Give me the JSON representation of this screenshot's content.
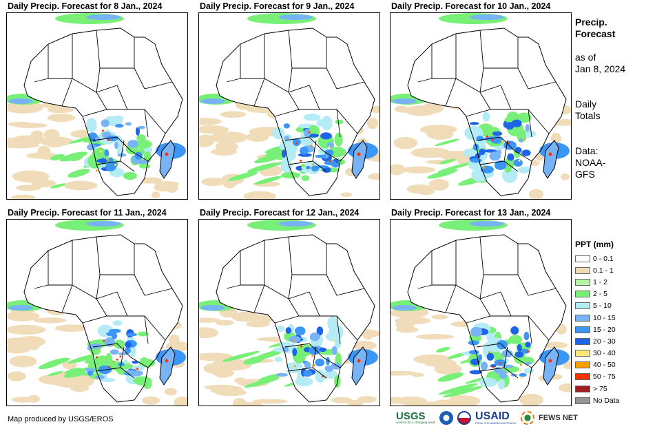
{
  "panels": [
    {
      "title": "Daily Precip. Forecast for 8 Jan., 2024"
    },
    {
      "title": "Daily Precip. Forecast for 9 Jan., 2024"
    },
    {
      "title": "Daily Precip. Forecast for 10 Jan., 2024"
    },
    {
      "title": "Daily Precip. Forecast for 11 Jan., 2024"
    },
    {
      "title": "Daily Precip. Forecast for 12 Jan., 2024"
    },
    {
      "title": "Daily Precip. Forecast for 13 Jan., 2024"
    }
  ],
  "side_info": {
    "title_line1": "Precip.",
    "title_line2": "Forecast",
    "asof_line1": "as of",
    "asof_line2": "Jan 8, 2024",
    "totals_line1": "Daily",
    "totals_line2": "Totals",
    "data_line1": "Data:",
    "data_line2": "NOAA-",
    "data_line3": "GFS"
  },
  "legend": {
    "title": "PPT (mm)",
    "items": [
      {
        "label": "0 - 0.1",
        "color": "#ffffff"
      },
      {
        "label": "0.1 - 1",
        "color": "#f0dcb8"
      },
      {
        "label": "1 - 2",
        "color": "#b4f5a8"
      },
      {
        "label": "2 - 5",
        "color": "#78f078"
      },
      {
        "label": "5 - 10",
        "color": "#b4ebf5"
      },
      {
        "label": "10 - 15",
        "color": "#78b4f5"
      },
      {
        "label": "15 - 20",
        "color": "#3c96f5"
      },
      {
        "label": "20 - 30",
        "color": "#1e64e6"
      },
      {
        "label": "30 - 40",
        "color": "#ffe678"
      },
      {
        "label": "40 - 50",
        "color": "#ffa000"
      },
      {
        "label": "50 - 75",
        "color": "#ff3200"
      },
      {
        "label": "> 75",
        "color": "#a01e1e"
      },
      {
        "label": "No Data",
        "color": "#969696"
      }
    ]
  },
  "footer": {
    "credit": "Map produced by USGS/EROS",
    "logos": {
      "usgs": "USGS",
      "usgs_tagline": "science for a changing world",
      "usaid": "USAID",
      "usaid_tagline": "FROM THE AMERICAN PEOPLE",
      "fews": "FEWS NET"
    }
  }
}
